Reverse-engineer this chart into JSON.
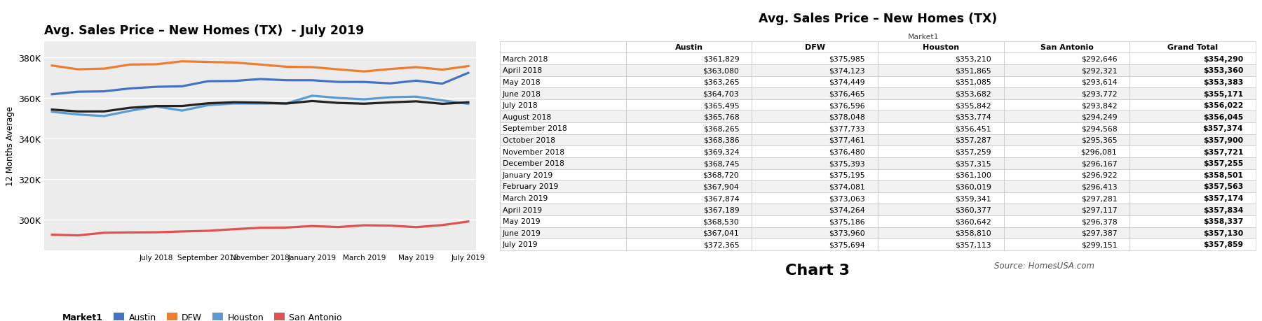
{
  "chart_title": "Avg. Sales Price – New Homes (TX)  - July 2019",
  "table_title": "Avg. Sales Price – New Homes (TX)",
  "ylabel": "12 Months Average",
  "months": [
    "March 2018",
    "April 2018",
    "May 2018",
    "June 2018",
    "July 2018",
    "August 2018",
    "September 2018",
    "October 2018",
    "November 2018",
    "December 2018",
    "January 2019",
    "February 2019",
    "March 2019",
    "April 2019",
    "May 2019",
    "June 2019",
    "July 2019"
  ],
  "x_ticks": [
    "July 2018",
    "September 2018",
    "November 2018",
    "January 2019",
    "March 2019",
    "May 2019",
    "July 2019"
  ],
  "austin": [
    361829,
    363080,
    363265,
    364703,
    365495,
    365768,
    368265,
    368386,
    369324,
    368745,
    368720,
    367904,
    367874,
    367189,
    368530,
    367041,
    372365
  ],
  "dfw": [
    375985,
    374123,
    374449,
    376465,
    376596,
    378048,
    377733,
    377461,
    376480,
    375393,
    375195,
    374081,
    373063,
    374264,
    375186,
    373960,
    375694
  ],
  "houston": [
    353210,
    351865,
    351085,
    353682,
    355842,
    353774,
    356451,
    357287,
    357259,
    357315,
    361100,
    360019,
    359341,
    360377,
    360642,
    358810,
    357113
  ],
  "san_antonio": [
    292646,
    292321,
    293614,
    293772,
    293842,
    294249,
    294568,
    295365,
    296081,
    296167,
    296922,
    296413,
    297281,
    297117,
    296378,
    297387,
    299151
  ],
  "grand_total": [
    354290,
    353360,
    353383,
    355171,
    356022,
    356045,
    357374,
    357900,
    357721,
    357255,
    358501,
    357563,
    357174,
    357834,
    358337,
    357130,
    357859
  ],
  "austin_color": "#4472c4",
  "dfw_color": "#ed7d31",
  "houston_color": "#5b9bd5",
  "san_antonio_color": "#e05252",
  "grand_total_color": "#222222",
  "ylim_min": 285000,
  "ylim_max": 388000,
  "yticks": [
    300000,
    320000,
    340000,
    360000,
    380000
  ],
  "ytick_labels": [
    "300K",
    "320K",
    "340K",
    "360K",
    "380K"
  ],
  "background_color": "#ffffff",
  "plot_bg_color": "#ececec",
  "grid_color": "#ffffff",
  "source_text": "Source: HomesUSA.com",
  "chart3_text": "Chart 3",
  "col_labels": [
    "",
    "Austin",
    "DFW",
    "Houston",
    "San Antonio",
    "Grand Total"
  ],
  "market1_label": "Market1"
}
